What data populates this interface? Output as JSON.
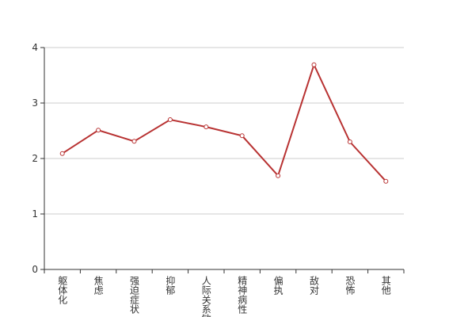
{
  "chart_data": {
    "type": "line",
    "categories": [
      "躯体化",
      "焦虑",
      "强迫症状",
      "抑郁",
      "人际关系敏感",
      "精神病性",
      "偏执",
      "敌对",
      "恐怖",
      "其他"
    ],
    "series": [
      {
        "color": "#b83232",
        "values": [
          2.09,
          2.51,
          2.31,
          2.7,
          2.57,
          2.41,
          1.69,
          3.69,
          2.3,
          1.59
        ]
      }
    ],
    "ylim": [
      0,
      4
    ],
    "yticks": [
      0,
      1,
      2,
      3,
      4
    ],
    "grid": true
  }
}
